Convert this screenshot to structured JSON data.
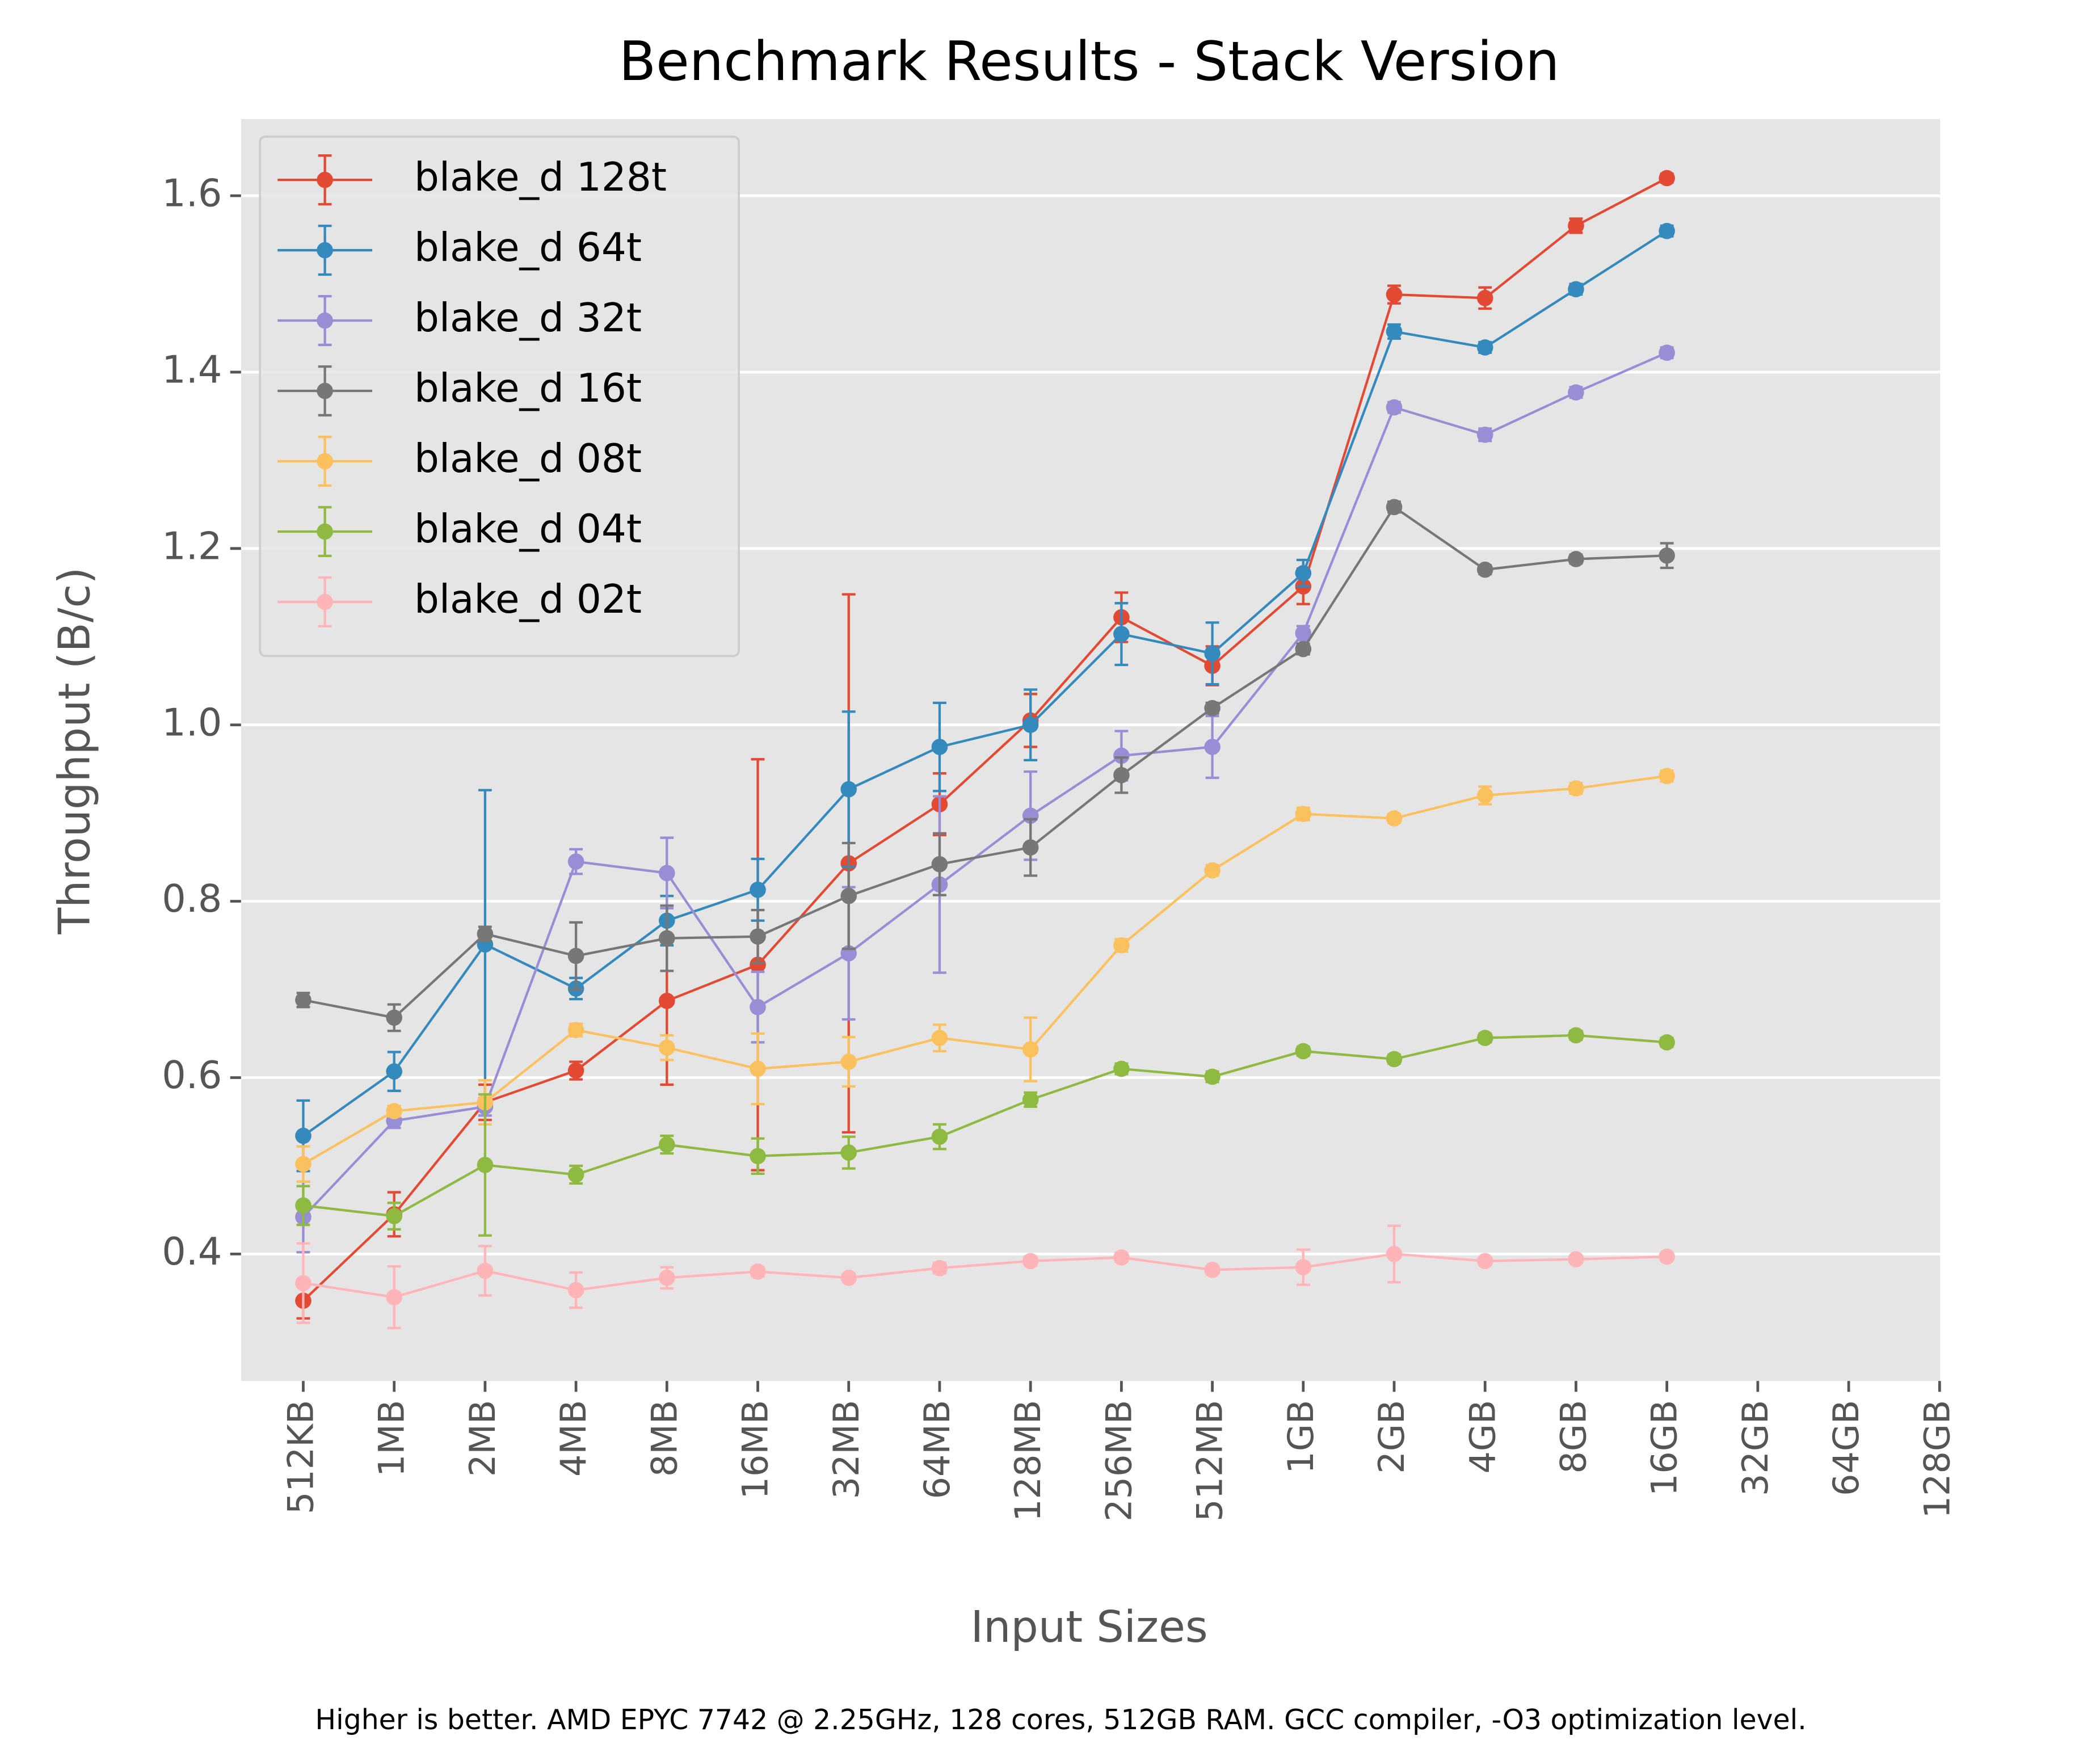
{
  "chart_data": {
    "type": "line",
    "title": "Benchmark Results - Stack Version",
    "xlabel": "Input Sizes",
    "ylabel": "Throughput (B/c)",
    "footnote": "Higher is better. AMD EPYC 7742 @ 2.25GHz, 128 cores, 512GB RAM. GCC compiler, -O3 optimization level.",
    "categories": [
      "512KB",
      "1MB",
      "2MB",
      "4MB",
      "8MB",
      "16MB",
      "32MB",
      "64MB",
      "128MB",
      "256MB",
      "512MB",
      "1GB",
      "2GB",
      "4GB",
      "8GB",
      "16GB",
      "32GB",
      "64GB",
      "128GB"
    ],
    "ylim": [
      0.256,
      1.687
    ],
    "yticks": [
      0.4,
      0.6,
      0.8,
      {
        "value": 1,
        "label": "1.0"
      },
      1.2,
      1.4,
      1.6
    ],
    "grid": true,
    "legend": "upper left",
    "series": [
      {
        "name": "blake_d 128t",
        "color": "#E24A33",
        "values": [
          0.347,
          0.445,
          0.572,
          0.608,
          0.687,
          0.728,
          0.843,
          0.91,
          1.005,
          1.122,
          1.067,
          1.157,
          1.488,
          1.484,
          1.566,
          1.62,
          null,
          null,
          null
        ],
        "errors": [
          0.02,
          0.025,
          0.02,
          0.01,
          0.095,
          0.233,
          0.305,
          0.035,
          0.03,
          0.028,
          0.022,
          0.02,
          0.01,
          0.012,
          0.008,
          0.005,
          null,
          null,
          null
        ]
      },
      {
        "name": "blake_d 64t",
        "color": "#348ABD",
        "values": [
          0.534,
          0.607,
          0.751,
          0.701,
          0.778,
          0.813,
          0.927,
          0.975,
          1.0,
          1.103,
          1.081,
          1.172,
          1.446,
          1.428,
          1.494,
          1.56,
          null,
          null,
          null
        ],
        "errors": [
          0.04,
          0.022,
          0.175,
          0.012,
          0.028,
          0.035,
          0.088,
          0.05,
          0.04,
          0.035,
          0.035,
          0.015,
          0.008,
          0.006,
          0.006,
          0.006,
          null,
          null,
          null
        ]
      },
      {
        "name": "blake_d 32t",
        "color": "#988ED5",
        "values": [
          0.442,
          0.551,
          0.567,
          0.845,
          0.832,
          0.68,
          0.741,
          0.819,
          0.897,
          0.965,
          0.975,
          1.104,
          1.36,
          1.329,
          1.377,
          1.422,
          null,
          null,
          null
        ],
        "errors": [
          0.04,
          0.008,
          0.01,
          0.014,
          0.04,
          0.04,
          0.075,
          0.1,
          0.05,
          0.028,
          0.035,
          0.008,
          0.006,
          0.007,
          0.006,
          0.006,
          null,
          null,
          null
        ]
      },
      {
        "name": "blake_d 16t",
        "color": "#777777",
        "values": [
          0.688,
          0.668,
          0.763,
          0.738,
          0.758,
          0.76,
          0.806,
          0.842,
          0.861,
          0.943,
          1.019,
          1.086,
          1.247,
          1.176,
          1.188,
          1.192,
          null,
          null,
          null
        ],
        "errors": [
          0.008,
          0.015,
          0.008,
          0.038,
          0.037,
          0.03,
          0.06,
          0.035,
          0.032,
          0.02,
          0.006,
          0.006,
          0.006,
          0.005,
          0.005,
          0.014,
          null,
          null,
          null
        ]
      },
      {
        "name": "blake_d 08t",
        "color": "#FBC15E",
        "values": [
          0.502,
          0.562,
          0.572,
          0.654,
          0.634,
          0.61,
          0.618,
          0.645,
          0.632,
          0.75,
          0.835,
          0.899,
          0.894,
          0.92,
          0.928,
          0.942,
          null,
          null,
          null
        ],
        "errors": [
          0.02,
          0.006,
          0.025,
          0.007,
          0.014,
          0.04,
          0.028,
          0.015,
          0.036,
          0.007,
          0.006,
          0.007,
          0.005,
          0.01,
          0.006,
          0.006,
          null,
          null,
          null
        ]
      },
      {
        "name": "blake_d 04t",
        "color": "#8EBA42",
        "values": [
          0.455,
          0.443,
          0.501,
          0.49,
          0.524,
          0.511,
          0.515,
          0.533,
          0.575,
          0.61,
          0.601,
          0.63,
          0.621,
          0.645,
          0.648,
          0.64,
          null,
          null,
          null
        ],
        "errors": [
          0.022,
          0.015,
          0.08,
          0.01,
          0.01,
          0.02,
          0.018,
          0.014,
          0.008,
          0.006,
          0.006,
          0.005,
          0.005,
          0.005,
          0.005,
          0.005,
          null,
          null,
          null
        ]
      },
      {
        "name": "blake_d 02t",
        "color": "#FFB5B8",
        "values": [
          0.367,
          0.351,
          0.381,
          0.359,
          0.373,
          0.38,
          0.373,
          0.384,
          0.392,
          0.396,
          0.382,
          0.385,
          0.4,
          0.392,
          0.394,
          0.397,
          null,
          null,
          null
        ],
        "errors": [
          0.045,
          0.035,
          0.028,
          0.02,
          0.012,
          0.005,
          0.004,
          0.006,
          0.005,
          0.005,
          0.004,
          0.02,
          0.032,
          0.004,
          0.004,
          0.004,
          null,
          null,
          null
        ]
      }
    ]
  }
}
